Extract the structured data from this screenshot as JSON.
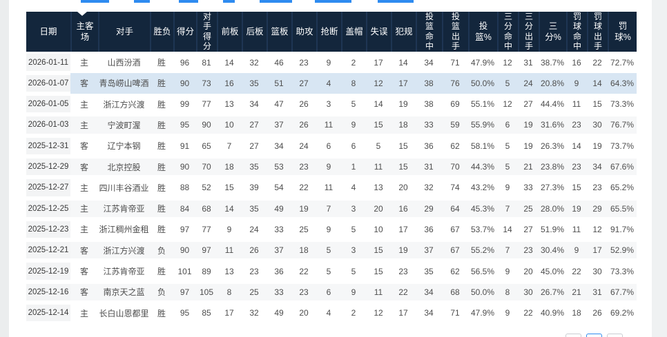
{
  "colors": {
    "toolbar_blue": "#2e8bf0",
    "header_bg": "#13263c",
    "highlight_row_bg": "#d8e6f3",
    "date_column_bg": "#f3f4f5",
    "stripe_row_bg": "#f6f7f8"
  },
  "table": {
    "columns": [
      {
        "key": "date",
        "label": "日期",
        "style": "normal"
      },
      {
        "key": "home-away",
        "label": "主客场",
        "style": "wrap2"
      },
      {
        "key": "opponent",
        "label": "对手",
        "style": "normal"
      },
      {
        "key": "result",
        "label": "胜负",
        "style": "normal"
      },
      {
        "key": "points",
        "label": "得分",
        "style": "normal"
      },
      {
        "key": "opp-points",
        "label": "对手得分",
        "style": "vertical"
      },
      {
        "key": "oreb",
        "label": "前板",
        "style": "normal"
      },
      {
        "key": "dreb",
        "label": "后板",
        "style": "normal"
      },
      {
        "key": "reb",
        "label": "篮板",
        "style": "normal"
      },
      {
        "key": "ast",
        "label": "助攻",
        "style": "normal"
      },
      {
        "key": "stl",
        "label": "抢断",
        "style": "normal"
      },
      {
        "key": "blk",
        "label": "盖帽",
        "style": "normal"
      },
      {
        "key": "tov",
        "label": "失误",
        "style": "normal"
      },
      {
        "key": "pf",
        "label": "犯规",
        "style": "normal"
      },
      {
        "key": "fgm",
        "label": "投篮命中",
        "style": "vertical"
      },
      {
        "key": "fga",
        "label": "投篮出手",
        "style": "vertical"
      },
      {
        "key": "fg-pct",
        "label": "投篮%",
        "style": "wrap2"
      },
      {
        "key": "threepm",
        "label": "三分命中",
        "style": "vertical"
      },
      {
        "key": "threepa",
        "label": "三分出手",
        "style": "vertical"
      },
      {
        "key": "threep-pct",
        "label": "三分%",
        "style": "wrap2"
      },
      {
        "key": "ftm",
        "label": "罚球命中",
        "style": "vertical"
      },
      {
        "key": "fta",
        "label": "罚球出手",
        "style": "vertical"
      },
      {
        "key": "ft-pct",
        "label": "罚球%",
        "style": "wrap2"
      }
    ],
    "highlighted_row_index": 1,
    "rows": [
      [
        "2026-01-11",
        "主",
        "山西汾酒",
        "胜",
        "96",
        "81",
        "14",
        "32",
        "46",
        "23",
        "9",
        "2",
        "17",
        "14",
        "34",
        "71",
        "47.9%",
        "12",
        "31",
        "38.7%",
        "16",
        "22",
        "72.7%"
      ],
      [
        "2026-01-07",
        "客",
        "青岛崂山啤酒",
        "胜",
        "90",
        "73",
        "16",
        "35",
        "51",
        "27",
        "4",
        "8",
        "12",
        "17",
        "38",
        "76",
        "50.0%",
        "5",
        "24",
        "20.8%",
        "9",
        "14",
        "64.3%"
      ],
      [
        "2026-01-05",
        "主",
        "浙江方兴渡",
        "胜",
        "99",
        "77",
        "13",
        "34",
        "47",
        "26",
        "3",
        "5",
        "14",
        "19",
        "38",
        "69",
        "55.1%",
        "12",
        "27",
        "44.4%",
        "11",
        "15",
        "73.3%"
      ],
      [
        "2026-01-03",
        "主",
        "宁波町渥",
        "胜",
        "95",
        "90",
        "10",
        "27",
        "37",
        "26",
        "11",
        "9",
        "15",
        "18",
        "33",
        "59",
        "55.9%",
        "6",
        "19",
        "31.6%",
        "23",
        "30",
        "76.7%"
      ],
      [
        "2025-12-31",
        "客",
        "辽宁本钢",
        "胜",
        "91",
        "65",
        "7",
        "27",
        "34",
        "24",
        "6",
        "6",
        "5",
        "15",
        "36",
        "62",
        "58.1%",
        "5",
        "19",
        "26.3%",
        "14",
        "19",
        "73.7%"
      ],
      [
        "2025-12-29",
        "客",
        "北京控股",
        "胜",
        "90",
        "70",
        "18",
        "35",
        "53",
        "23",
        "9",
        "1",
        "11",
        "15",
        "31",
        "70",
        "44.3%",
        "5",
        "21",
        "23.8%",
        "23",
        "34",
        "67.6%"
      ],
      [
        "2025-12-27",
        "主",
        "四川丰谷酒业",
        "胜",
        "88",
        "52",
        "15",
        "39",
        "54",
        "22",
        "11",
        "4",
        "13",
        "20",
        "32",
        "74",
        "43.2%",
        "9",
        "33",
        "27.3%",
        "15",
        "23",
        "65.2%"
      ],
      [
        "2025-12-25",
        "主",
        "江苏肯帝亚",
        "胜",
        "84",
        "68",
        "14",
        "35",
        "49",
        "19",
        "7",
        "3",
        "20",
        "16",
        "29",
        "64",
        "45.3%",
        "7",
        "25",
        "28.0%",
        "19",
        "29",
        "65.5%"
      ],
      [
        "2025-12-23",
        "主",
        "浙江稠州金租",
        "胜",
        "97",
        "77",
        "9",
        "24",
        "33",
        "25",
        "9",
        "5",
        "10",
        "17",
        "36",
        "67",
        "53.7%",
        "14",
        "27",
        "51.9%",
        "11",
        "12",
        "91.7%"
      ],
      [
        "2025-12-21",
        "客",
        "浙江方兴渡",
        "负",
        "90",
        "97",
        "11",
        "26",
        "37",
        "18",
        "5",
        "3",
        "15",
        "19",
        "37",
        "67",
        "55.2%",
        "7",
        "23",
        "30.4%",
        "9",
        "17",
        "52.9%"
      ],
      [
        "2025-12-19",
        "客",
        "江苏肯帝亚",
        "胜",
        "101",
        "89",
        "13",
        "23",
        "36",
        "22",
        "5",
        "5",
        "15",
        "23",
        "35",
        "62",
        "56.5%",
        "9",
        "20",
        "45.0%",
        "22",
        "30",
        "73.3%"
      ],
      [
        "2025-12-16",
        "客",
        "南京天之蓝",
        "负",
        "97",
        "105",
        "8",
        "25",
        "33",
        "23",
        "6",
        "9",
        "11",
        "22",
        "34",
        "68",
        "50.0%",
        "8",
        "30",
        "26.7%",
        "21",
        "31",
        "67.7%"
      ],
      [
        "2025-12-14",
        "主",
        "长白山恩都里",
        "胜",
        "95",
        "85",
        "17",
        "32",
        "49",
        "20",
        "4",
        "2",
        "12",
        "17",
        "34",
        "71",
        "47.9%",
        "9",
        "22",
        "40.9%",
        "18",
        "26",
        "69.2%"
      ]
    ]
  },
  "pagination": {
    "button_count": 3,
    "active_index": 1
  }
}
